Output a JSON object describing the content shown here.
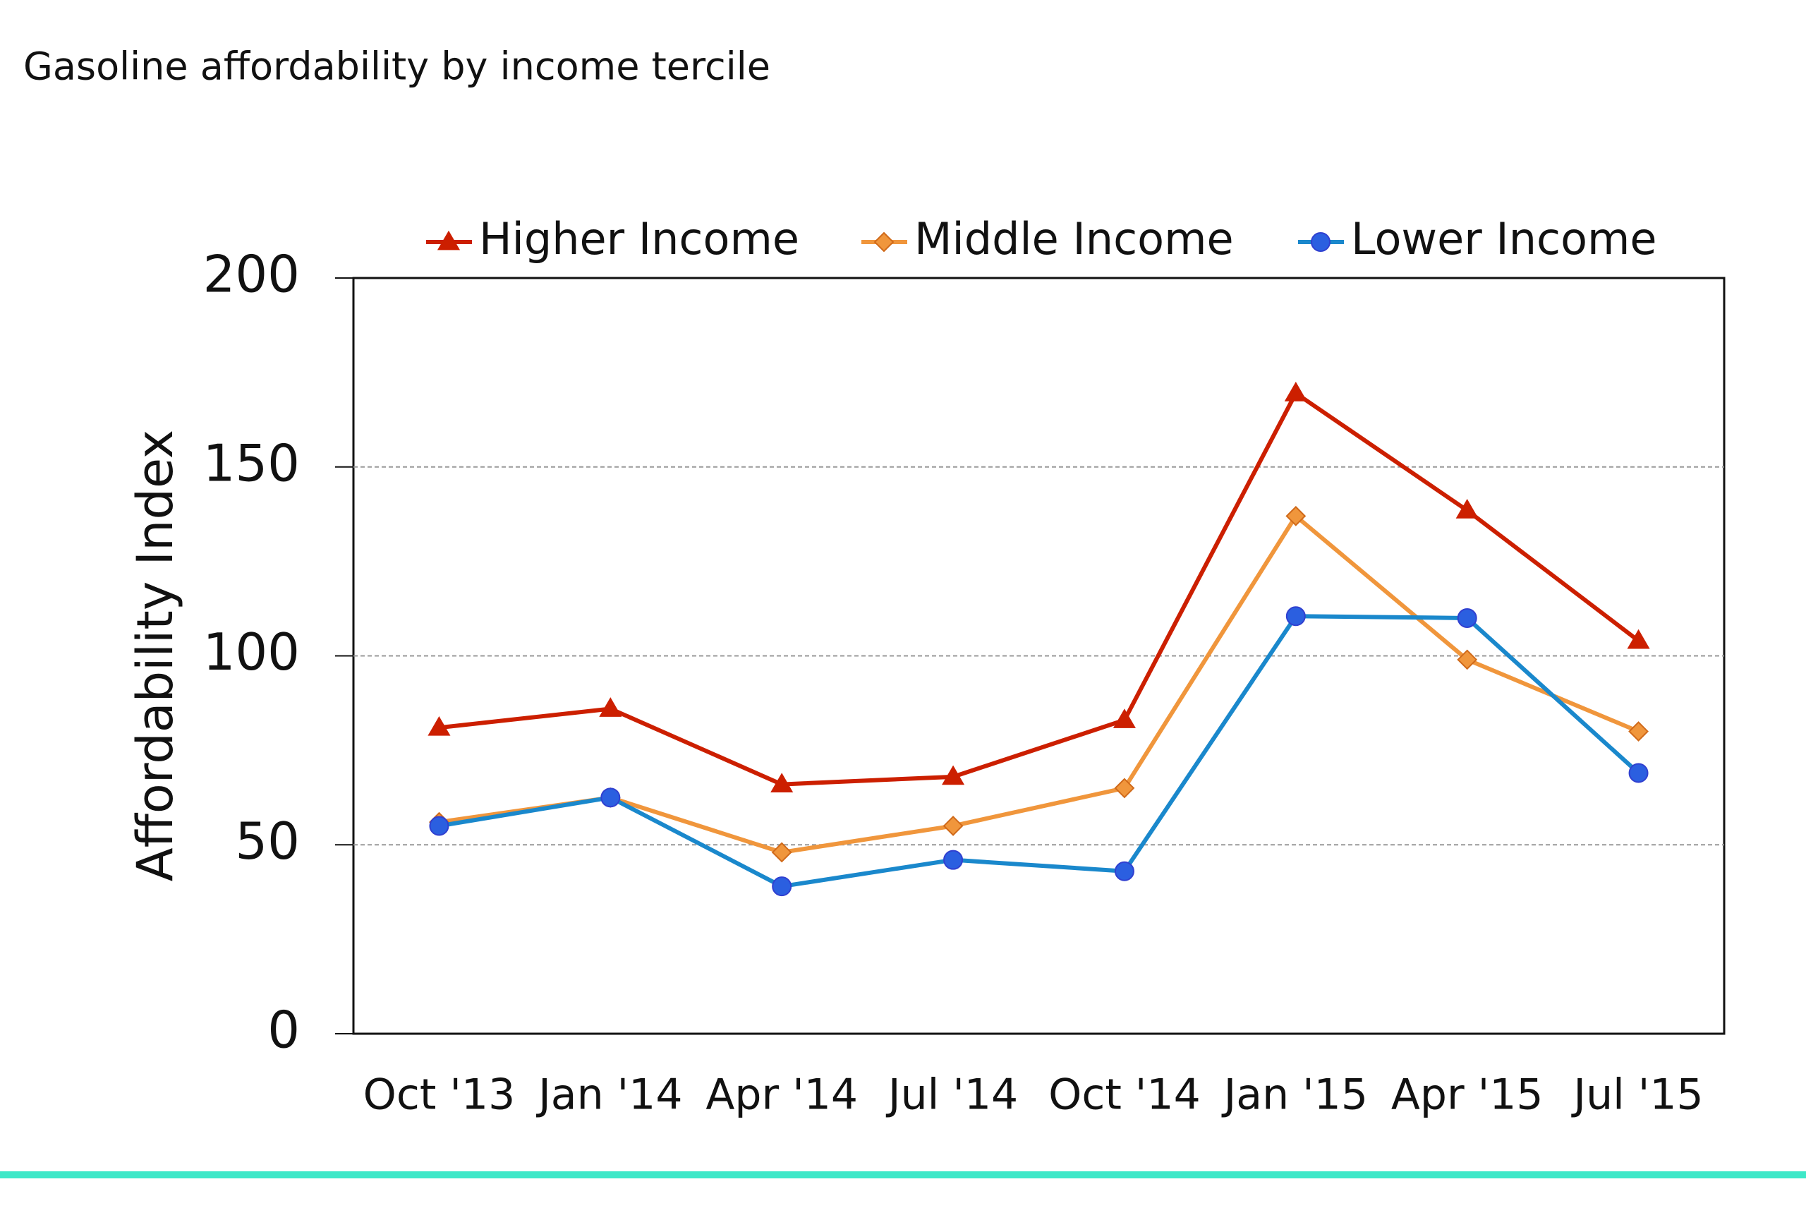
{
  "chart_data": {
    "type": "line",
    "title": "Gasoline affordability by income tercile",
    "y_label": "Affordability Index",
    "categories": [
      "Oct '13",
      "Jan '14",
      "Apr '14",
      "Jul '14",
      "Oct '14",
      "Jan '15",
      "Apr '15",
      "Jul '15"
    ],
    "series": [
      {
        "name": "Higher Income",
        "color": "#cc1f00",
        "marker": "triangle",
        "values": [
          81,
          86,
          66,
          68,
          83,
          169.5,
          138.5,
          104
        ]
      },
      {
        "name": "Middle Income",
        "color": "#f0963c",
        "marker": "diamond",
        "values": [
          56,
          62.5,
          48,
          55,
          65,
          137,
          99,
          80
        ]
      },
      {
        "name": "Lower Income",
        "color": "#1a88cc",
        "marker": "circle",
        "values": [
          55,
          62.5,
          39,
          46,
          43,
          110.5,
          110,
          69
        ]
      }
    ],
    "ylim": [
      0,
      200
    ],
    "yticks": [
      0,
      50,
      100,
      150,
      200
    ],
    "grid": true,
    "legend": "top"
  }
}
